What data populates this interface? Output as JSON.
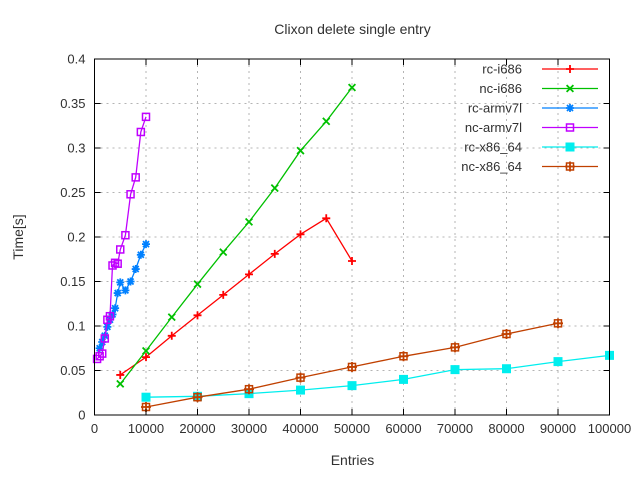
{
  "title": "Clixon delete single entry",
  "chart_data": {
    "type": "line",
    "title": "Clixon delete single entry",
    "xlabel": "Entries",
    "ylabel": "Time[s]",
    "xlim": [
      0,
      100000
    ],
    "ylim": [
      0,
      0.4
    ],
    "xticks": [
      0,
      10000,
      20000,
      30000,
      40000,
      50000,
      60000,
      70000,
      80000,
      90000,
      100000
    ],
    "xtick_labels": [
      "0",
      "10000",
      "20000",
      "30000",
      "40000",
      "50000",
      "60000",
      "70000",
      "80000",
      "90000",
      "100000"
    ],
    "yticks": [
      0,
      0.05,
      0.1,
      0.15,
      0.2,
      0.25,
      0.3,
      0.35,
      0.4
    ],
    "ytick_labels": [
      "0",
      "0.05",
      "0.1",
      "0.15",
      "0.2",
      "0.25",
      "0.3",
      "0.35",
      "0.4"
    ],
    "grid": true,
    "grid_style": "dashed-gray",
    "legend_position": "top-right-inside",
    "colors": {
      "axis": "#000000",
      "grid": "#b4b4b4",
      "text": "#303030",
      "background": "#ffffff"
    },
    "series": [
      {
        "name": "rc-i686",
        "color": "#ff0000",
        "marker": "plus",
        "points": [
          [
            5000,
            0.045
          ],
          [
            10000,
            0.065
          ],
          [
            15000,
            0.089
          ],
          [
            20000,
            0.112
          ],
          [
            25000,
            0.135
          ],
          [
            30000,
            0.158
          ],
          [
            35000,
            0.181
          ],
          [
            40000,
            0.203
          ],
          [
            45000,
            0.221
          ],
          [
            50000,
            0.173
          ]
        ]
      },
      {
        "name": "nc-i686",
        "color": "#00c000",
        "marker": "cross",
        "points": [
          [
            5000,
            0.035
          ],
          [
            10000,
            0.072
          ],
          [
            15000,
            0.11
          ],
          [
            20000,
            0.147
          ],
          [
            25000,
            0.183
          ],
          [
            30000,
            0.217
          ],
          [
            35000,
            0.255
          ],
          [
            40000,
            0.297
          ],
          [
            45000,
            0.33
          ],
          [
            50000,
            0.368
          ]
        ]
      },
      {
        "name": "rc-armv7l",
        "color": "#0080ff",
        "marker": "asterisk",
        "points": [
          [
            1000,
            0.075
          ],
          [
            1500,
            0.082
          ],
          [
            2000,
            0.089
          ],
          [
            2500,
            0.099
          ],
          [
            3000,
            0.107
          ],
          [
            3500,
            0.113
          ],
          [
            4000,
            0.12
          ],
          [
            4500,
            0.137
          ],
          [
            5000,
            0.149
          ],
          [
            6000,
            0.14
          ],
          [
            7000,
            0.15
          ],
          [
            8000,
            0.164
          ],
          [
            9000,
            0.18
          ],
          [
            10000,
            0.192
          ]
        ]
      },
      {
        "name": "nc-armv7l",
        "color": "#c000ff",
        "marker": "open-square",
        "points": [
          [
            500,
            0.063
          ],
          [
            1000,
            0.066
          ],
          [
            1500,
            0.069
          ],
          [
            2000,
            0.086
          ],
          [
            2500,
            0.107
          ],
          [
            3000,
            0.111
          ],
          [
            3500,
            0.168
          ],
          [
            4000,
            0.171
          ],
          [
            4500,
            0.17
          ],
          [
            5000,
            0.186
          ],
          [
            6000,
            0.202
          ],
          [
            7000,
            0.248
          ],
          [
            8000,
            0.267
          ],
          [
            9000,
            0.318
          ],
          [
            10000,
            0.335
          ]
        ]
      },
      {
        "name": "rc-x86_64",
        "color": "#00eeee",
        "marker": "filled-square",
        "points": [
          [
            10000,
            0.02
          ],
          [
            20000,
            0.021
          ],
          [
            30000,
            0.024
          ],
          [
            40000,
            0.028
          ],
          [
            50000,
            0.033
          ],
          [
            60000,
            0.04
          ],
          [
            70000,
            0.051
          ],
          [
            80000,
            0.052
          ],
          [
            90000,
            0.06
          ],
          [
            100000,
            0.067
          ]
        ]
      },
      {
        "name": "nc-x86_64",
        "color": "#c04000",
        "marker": "square-plus",
        "points": [
          [
            10000,
            0.009
          ],
          [
            20000,
            0.02
          ],
          [
            30000,
            0.029
          ],
          [
            40000,
            0.042
          ],
          [
            50000,
            0.054
          ],
          [
            60000,
            0.066
          ],
          [
            70000,
            0.076
          ],
          [
            80000,
            0.091
          ],
          [
            90000,
            0.103
          ]
        ]
      }
    ]
  }
}
